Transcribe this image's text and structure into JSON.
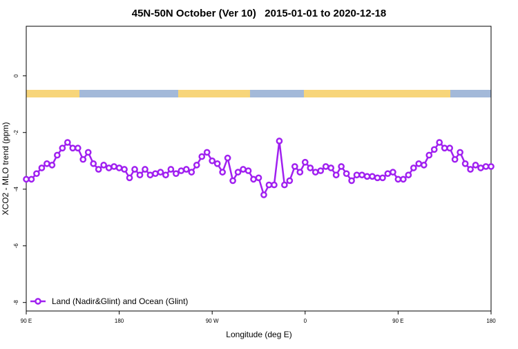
{
  "chart_data": {
    "type": "line",
    "title": "45N-50N October (Ver 10)   2015-01-01 to 2020-12-18",
    "x_label": "Longitude (deg E)",
    "y_label": "XCO2 - MLO trend (ppm)",
    "x": [
      90,
      95,
      100,
      105,
      110,
      115,
      120,
      125,
      130,
      135,
      140,
      145,
      150,
      155,
      160,
      165,
      170,
      175,
      180,
      185,
      190,
      195,
      200,
      205,
      210,
      215,
      220,
      225,
      230,
      235,
      240,
      245,
      250,
      255,
      260,
      265,
      270,
      275,
      280,
      285,
      290,
      295,
      300,
      305,
      310,
      315,
      320,
      325,
      330,
      335,
      340,
      345,
      350,
      355,
      360,
      365,
      370,
      375,
      380,
      385,
      390,
      395,
      400,
      405,
      410,
      415,
      420,
      425,
      430,
      435,
      440,
      445,
      450,
      455,
      460,
      465,
      470,
      475,
      480,
      485,
      490,
      495,
      500,
      505,
      510,
      515,
      520,
      525,
      530,
      535,
      540
    ],
    "series": [
      {
        "name": "Land (Nadir&Glint) and Ocean (Glint)",
        "color": "#a020f0",
        "values": [
          -3.65,
          -3.65,
          -3.45,
          -3.25,
          -3.1,
          -3.15,
          -2.8,
          -2.55,
          -2.35,
          -2.55,
          -2.55,
          -2.95,
          -2.7,
          -3.1,
          -3.3,
          -3.15,
          -3.25,
          -3.2,
          -3.25,
          -3.3,
          -3.6,
          -3.3,
          -3.5,
          -3.3,
          -3.5,
          -3.45,
          -3.4,
          -3.5,
          -3.3,
          -3.45,
          -3.35,
          -3.3,
          -3.4,
          -3.15,
          -2.85,
          -2.7,
          -3.0,
          -3.1,
          -3.4,
          -2.9,
          -3.7,
          -3.4,
          -3.3,
          -3.35,
          -3.65,
          -3.6,
          -4.2,
          -3.85,
          -3.85,
          -2.3,
          -3.85,
          -3.7,
          -3.2,
          -3.4,
          -3.05,
          -3.25,
          -3.4,
          -3.35,
          -3.2,
          -3.25,
          -3.5,
          -3.2,
          -3.45,
          -3.7,
          -3.5,
          -3.5,
          -3.55,
          -3.55,
          -3.6,
          -3.6,
          -3.45,
          -3.4,
          -3.65,
          -3.65,
          -3.5,
          -3.25,
          -3.1,
          -3.15,
          -2.8,
          -2.6,
          -2.35,
          -2.55,
          -2.55,
          -2.95,
          -2.7,
          -3.1,
          -3.3,
          -3.15,
          -3.25,
          -3.2,
          -3.2
        ]
      }
    ],
    "xlim": [
      90,
      540
    ],
    "xticks": [
      {
        "value": 90,
        "label": "90 E"
      },
      {
        "value": 180,
        "label": "180"
      },
      {
        "value": 270,
        "label": "90 W"
      },
      {
        "value": 360,
        "label": "0"
      },
      {
        "value": 450,
        "label": "90 E"
      },
      {
        "value": 540,
        "label": "180"
      }
    ],
    "ylim": [
      -8.3,
      1.75
    ],
    "yticks": [
      0,
      -2,
      -4,
      -6,
      -8
    ],
    "legend": "bottomleft"
  }
}
